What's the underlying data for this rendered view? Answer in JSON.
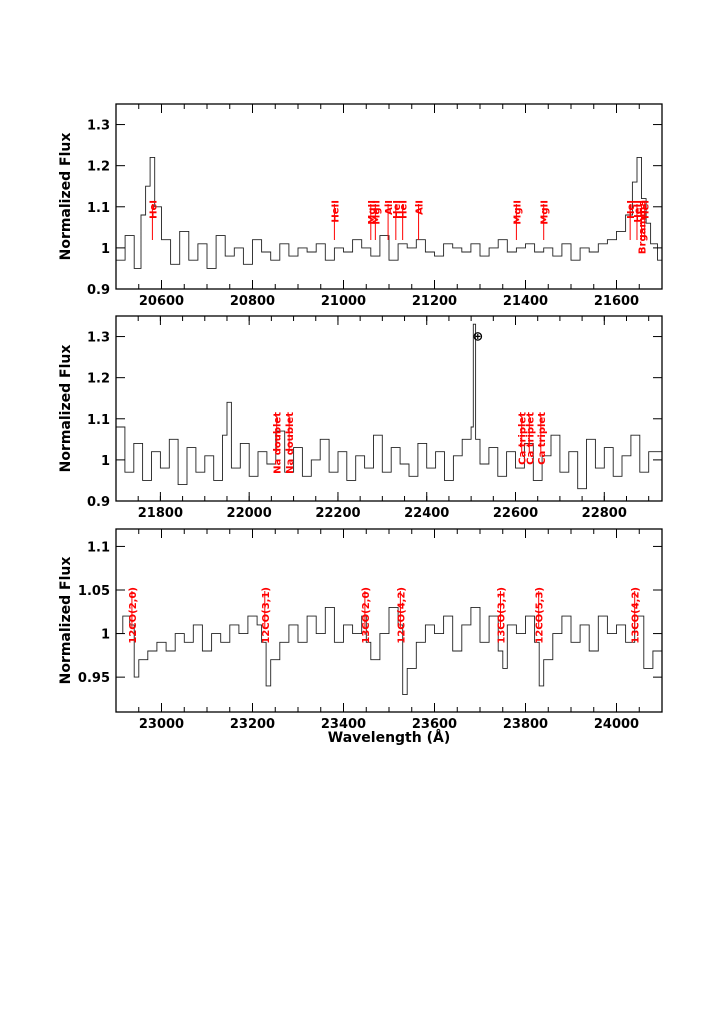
{
  "colors": {
    "frame": "#000000",
    "spectrum": "#222222",
    "line_markers": "#ff0000"
  },
  "chart_data": [
    {
      "type": "line",
      "ylabel": "Normalized Flux",
      "xlabel": "",
      "xlim": [
        20500,
        21700
      ],
      "ylim": [
        0.9,
        1.35
      ],
      "xticks": [
        20600,
        20800,
        21000,
        21200,
        21400,
        21600
      ],
      "yticks": [
        0.9,
        1,
        1.1,
        1.2,
        1.3
      ],
      "ytick_labels": [
        "0.9",
        "1",
        "1.1",
        "1.2",
        "1.3"
      ],
      "series": [
        {
          "x": [
            20500,
            20520,
            20540,
            20555,
            20565,
            20575,
            20585,
            20600,
            20620,
            20640,
            20660,
            20680,
            20700,
            20720,
            20740,
            20760,
            20780,
            20800,
            20820,
            20840,
            20860,
            20880,
            20900,
            20920,
            20940,
            20960,
            20980,
            21000,
            21020,
            21040,
            21060,
            21080,
            21100,
            21120,
            21140,
            21160,
            21180,
            21200,
            21220,
            21240,
            21260,
            21280,
            21300,
            21320,
            21340,
            21360,
            21380,
            21400,
            21420,
            21440,
            21460,
            21480,
            21500,
            21520,
            21540,
            21560,
            21580,
            21600,
            21620,
            21635,
            21645,
            21655,
            21665,
            21675,
            21690,
            21700
          ],
          "y": [
            0.97,
            1.03,
            0.95,
            1.08,
            1.15,
            1.22,
            1.1,
            1.02,
            0.96,
            1.04,
            0.97,
            1.01,
            0.95,
            1.03,
            0.98,
            1.0,
            0.96,
            1.02,
            0.99,
            0.97,
            1.01,
            0.98,
            1.0,
            0.99,
            1.01,
            0.97,
            1.0,
            0.99,
            1.02,
            1.0,
            0.98,
            1.03,
            0.97,
            1.01,
            1.0,
            1.02,
            0.99,
            0.98,
            1.01,
            1.0,
            0.99,
            1.01,
            0.98,
            1.0,
            1.02,
            0.99,
            1.0,
            1.01,
            0.99,
            1.0,
            0.98,
            1.01,
            0.97,
            1.0,
            0.99,
            1.01,
            1.02,
            1.04,
            1.08,
            1.16,
            1.22,
            1.12,
            1.06,
            1.01,
            0.97,
            0.96
          ]
        }
      ],
      "line_markers": [
        {
          "x": 20580,
          "label": "HeI"
        },
        {
          "x": 20980,
          "label": "HeII"
        },
        {
          "x": 21060,
          "label": "MgII"
        },
        {
          "x": 21070,
          "label": "MgII"
        },
        {
          "x": 21098,
          "label": "AlI"
        },
        {
          "x": 21115,
          "label": "HeI"
        },
        {
          "x": 21130,
          "label": "HeI"
        },
        {
          "x": 21165,
          "label": "AlI"
        },
        {
          "x": 21380,
          "label": "MgII"
        },
        {
          "x": 21440,
          "label": "MgII"
        },
        {
          "x": 21630,
          "label": "HeI"
        },
        {
          "x": 21645,
          "label": "HeII"
        },
        {
          "x": 21655,
          "label": "Brgamma"
        },
        {
          "x": 21662,
          "label": "HeI"
        }
      ]
    },
    {
      "type": "line",
      "ylabel": "Normalized Flux",
      "xlabel": "",
      "xlim": [
        21700,
        22930
      ],
      "ylim": [
        0.9,
        1.35
      ],
      "xticks": [
        21800,
        22000,
        22200,
        22400,
        22600,
        22800
      ],
      "yticks": [
        0.9,
        1,
        1.1,
        1.2,
        1.3
      ],
      "ytick_labels": [
        "0.9",
        "1",
        "1.1",
        "1.2",
        "1.3"
      ],
      "series": [
        {
          "x": [
            21700,
            21720,
            21740,
            21760,
            21780,
            21800,
            21820,
            21840,
            21860,
            21880,
            21900,
            21920,
            21940,
            21950,
            21960,
            21980,
            22000,
            22020,
            22040,
            22060,
            22080,
            22100,
            22120,
            22140,
            22160,
            22180,
            22200,
            22220,
            22240,
            22260,
            22280,
            22300,
            22320,
            22340,
            22360,
            22380,
            22400,
            22420,
            22440,
            22460,
            22480,
            22500,
            22505,
            22510,
            22520,
            22540,
            22560,
            22580,
            22600,
            22620,
            22640,
            22660,
            22680,
            22700,
            22720,
            22740,
            22760,
            22780,
            22800,
            22820,
            22840,
            22860,
            22880,
            22900,
            22930
          ],
          "y": [
            1.08,
            0.97,
            1.04,
            0.95,
            1.02,
            0.98,
            1.05,
            0.94,
            1.03,
            0.97,
            1.01,
            0.95,
            1.06,
            1.14,
            0.98,
            1.04,
            0.96,
            1.02,
            0.99,
            1.07,
            0.97,
            1.03,
            0.96,
            1.0,
            1.05,
            0.97,
            1.02,
            0.95,
            1.01,
            0.98,
            1.06,
            0.97,
            1.03,
            0.99,
            0.96,
            1.04,
            0.98,
            1.02,
            0.95,
            1.01,
            1.05,
            1.08,
            1.33,
            1.05,
            0.99,
            1.03,
            0.96,
            1.02,
            0.98,
            1.04,
            0.95,
            1.01,
            1.06,
            0.97,
            1.02,
            0.93,
            1.05,
            0.98,
            1.03,
            0.96,
            1.01,
            1.06,
            0.97,
            1.02,
            0.99
          ]
        }
      ],
      "line_markers": [
        {
          "x": 22062,
          "label": "Na doublet"
        },
        {
          "x": 22090,
          "label": "Na doublet"
        },
        {
          "x": 22614,
          "label": "Ca triplet"
        },
        {
          "x": 22631,
          "label": "Ca triplet"
        },
        {
          "x": 22657,
          "label": "Ca triplet"
        }
      ],
      "annotation": {
        "x": 22515,
        "y": 1.29,
        "text": "⊕"
      }
    },
    {
      "type": "line",
      "ylabel": "Normalized Flux",
      "xlabel": "Wavelength (Å)",
      "xlim": [
        22900,
        24100
      ],
      "ylim": [
        0.91,
        1.12
      ],
      "xticks": [
        23000,
        23200,
        23400,
        23600,
        23800,
        24000
      ],
      "yticks": [
        0.95,
        1,
        1.05,
        1.1
      ],
      "ytick_labels": [
        "0.95",
        "1",
        "1.05",
        "1.1"
      ],
      "series": [
        {
          "x": [
            22900,
            22915,
            22930,
            22940,
            22950,
            22970,
            22990,
            23010,
            23030,
            23050,
            23070,
            23090,
            23110,
            23130,
            23150,
            23170,
            23190,
            23210,
            23220,
            23230,
            23240,
            23260,
            23280,
            23300,
            23320,
            23340,
            23360,
            23380,
            23400,
            23420,
            23440,
            23450,
            23460,
            23480,
            23500,
            23520,
            23530,
            23540,
            23560,
            23580,
            23600,
            23620,
            23640,
            23660,
            23680,
            23700,
            23720,
            23740,
            23750,
            23760,
            23780,
            23800,
            23820,
            23830,
            23840,
            23860,
            23880,
            23900,
            23920,
            23940,
            23960,
            23980,
            24000,
            24020,
            24040,
            24060,
            24080,
            24100
          ],
          "y": [
            1.0,
            1.02,
            1.01,
            0.95,
            0.97,
            0.98,
            0.99,
            0.98,
            1.0,
            0.99,
            1.01,
            0.98,
            1.0,
            0.99,
            1.01,
            1.0,
            1.02,
            1.01,
            0.99,
            0.94,
            0.97,
            0.99,
            1.01,
            0.99,
            1.02,
            1.0,
            1.03,
            0.99,
            1.01,
            1.0,
            1.02,
            0.99,
            0.97,
            1.0,
            1.03,
            1.01,
            0.93,
            0.96,
            0.99,
            1.01,
            1.0,
            1.02,
            0.98,
            1.01,
            1.03,
            0.99,
            1.02,
            0.98,
            0.96,
            1.01,
            1.0,
            1.02,
            0.99,
            0.94,
            0.97,
            1.0,
            1.02,
            0.99,
            1.01,
            0.98,
            1.02,
            1.0,
            1.01,
            0.99,
            1.02,
            0.96,
            0.98,
            0.97
          ]
        }
      ],
      "line_markers": [
        {
          "x": 22935,
          "label": "12CO(2,0)"
        },
        {
          "x": 23227,
          "label": "12CO(3,1)"
        },
        {
          "x": 23447,
          "label": "13CO(2,0)"
        },
        {
          "x": 23525,
          "label": "12CO(4,2)"
        },
        {
          "x": 23745,
          "label": "13CO(3,1)"
        },
        {
          "x": 23829,
          "label": "12CO(5,3)"
        },
        {
          "x": 24040,
          "label": "13CO(4,2)"
        }
      ]
    }
  ]
}
